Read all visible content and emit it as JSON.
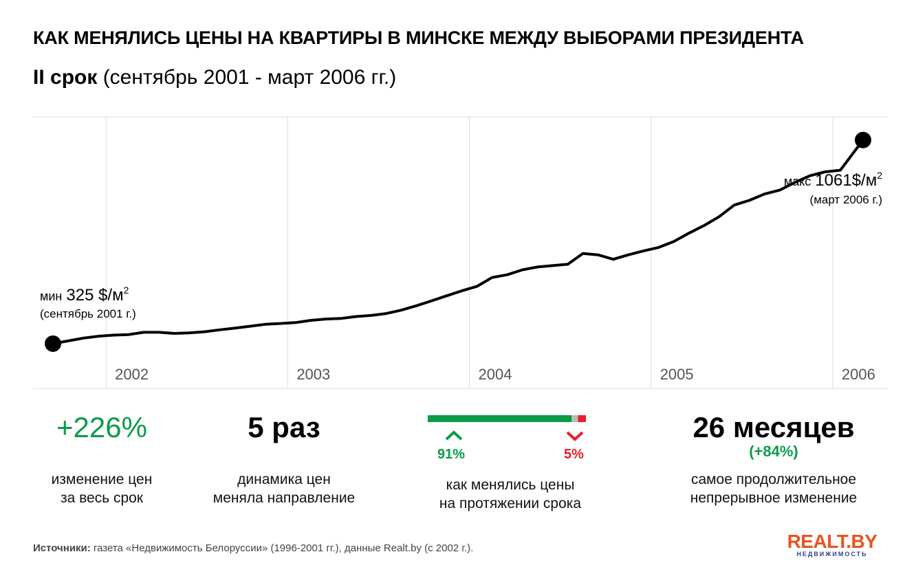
{
  "header": {
    "title": "КАК МЕНЯЛИСЬ ЦЕНЫ НА КВАРТИРЫ В МИНСКЕ МЕЖДУ ВЫБОРАМИ ПРЕЗИДЕНТА",
    "subtitle_bold": "II срок",
    "subtitle_rest": " (сентябрь 2001 - март 2006 гг.)"
  },
  "chart_data": {
    "type": "line",
    "xlabel": "",
    "ylabel": "",
    "x_ticks": [
      "2002",
      "2003",
      "2004",
      "2005",
      "2006"
    ],
    "grid": true,
    "ylim": [
      0,
      1200
    ],
    "series": [
      {
        "x": [
          2001.708,
          2001.792,
          2001.875,
          2001.958,
          2002.042,
          2002.125,
          2002.208,
          2002.292,
          2002.375,
          2002.458,
          2002.542,
          2002.625,
          2002.708,
          2002.792,
          2002.875,
          2002.958,
          2003.042,
          2003.125,
          2003.208,
          2003.292,
          2003.375,
          2003.458,
          2003.542,
          2003.625,
          2003.708,
          2003.792,
          2003.875,
          2003.958,
          2004.042,
          2004.125,
          2004.208,
          2004.292,
          2004.375,
          2004.458,
          2004.542,
          2004.625,
          2004.708,
          2004.792,
          2004.875,
          2004.958,
          2005.042,
          2005.125,
          2005.208,
          2005.292,
          2005.375,
          2005.458,
          2005.542,
          2005.625,
          2005.708,
          2005.792,
          2005.875,
          2005.958,
          2006.042,
          2006.167
        ],
        "values": [
          325,
          335,
          345,
          352,
          356,
          358,
          366,
          366,
          362,
          364,
          368,
          375,
          381,
          388,
          395,
          398,
          401,
          409,
          414,
          416,
          423,
          427,
          434,
          446,
          462,
          480,
          498,
          516,
          532,
          564,
          574,
          592,
          602,
          607,
          612,
          651,
          646,
          630,
          646,
          660,
          673,
          694,
          724,
          752,
          784,
          826,
          843,
          866,
          880,
          908,
          932,
          946,
          952,
          1061
        ]
      }
    ],
    "annotations": {
      "min": {
        "prefix": "мин",
        "value": "325 $/м",
        "sup": "2",
        "note": "(сентябрь 2001 г.)"
      },
      "max": {
        "prefix": "макс",
        "value": "1061$/м",
        "sup": "2",
        "note": "(март 2006 г.)"
      }
    }
  },
  "stats": {
    "change": {
      "value": "+226%",
      "caption1": "изменение цен",
      "caption2": "за весь срок"
    },
    "direction": {
      "value": "5 раз",
      "caption1": "динамика цен",
      "caption2": "меняла направление"
    },
    "split": {
      "up_pct": "91%",
      "down_pct": "5%",
      "up_fraction": 0.91,
      "flat_fraction": 0.04,
      "down_fraction": 0.05,
      "up_color": "#0a9b48",
      "flat_color": "#bbbbbb",
      "down_color": "#e8202a",
      "caption1": "как менялись цены",
      "caption2": "на протяжении срока"
    },
    "longest": {
      "value": "26 месяцев",
      "sub": "(+84%)",
      "caption1": "самое продолжительное",
      "caption2": "непрерывное изменение"
    }
  },
  "footer": {
    "sources_label": "Источники:",
    "sources_text": "  газета «Недвижимость Белоруссии» (1996-2001 гг.),  данные Realt.by (с 2002 г.).",
    "logo_top": "REALT.BY",
    "logo_bottom": "НЕДВИЖИМОСТЬ"
  },
  "colors": {
    "line": "#000000",
    "grid": "#dddddd",
    "accent_green": "#0a9b48",
    "accent_red": "#e8202a",
    "logo_orange": "#e8531f"
  }
}
